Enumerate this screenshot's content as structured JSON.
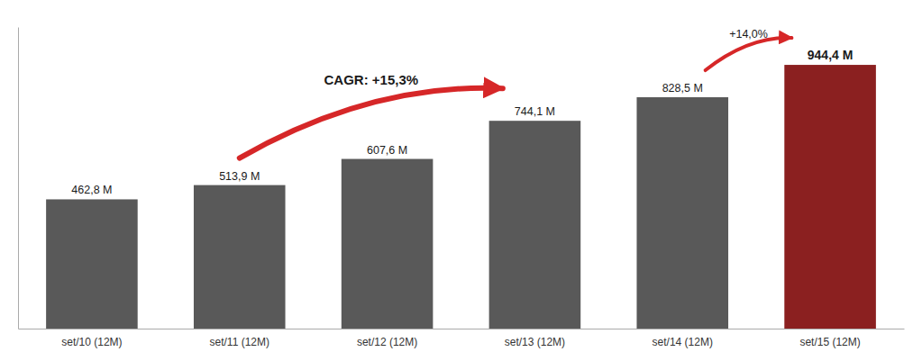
{
  "chart_data": {
    "type": "bar",
    "categories": [
      "set/10 (12M)",
      "set/11 (12M)",
      "set/12 (12M)",
      "set/13 (12M)",
      "set/14 (12M)",
      "set/15 (12M)"
    ],
    "values": [
      462.8,
      513.9,
      607.6,
      744.1,
      828.5,
      944.4
    ],
    "value_labels": [
      "462,8 M",
      "513,9 M",
      "607,6 M",
      "744,1 M",
      "828,5 M",
      "944,4 M"
    ],
    "colors": [
      "#595959",
      "#595959",
      "#595959",
      "#595959",
      "#595959",
      "#8B2020"
    ],
    "ylim": [
      0,
      1080
    ],
    "data_labels": true,
    "tick_labels": "x",
    "annotations": [
      "CAGR: +15,3%",
      "+14,0%"
    ]
  }
}
